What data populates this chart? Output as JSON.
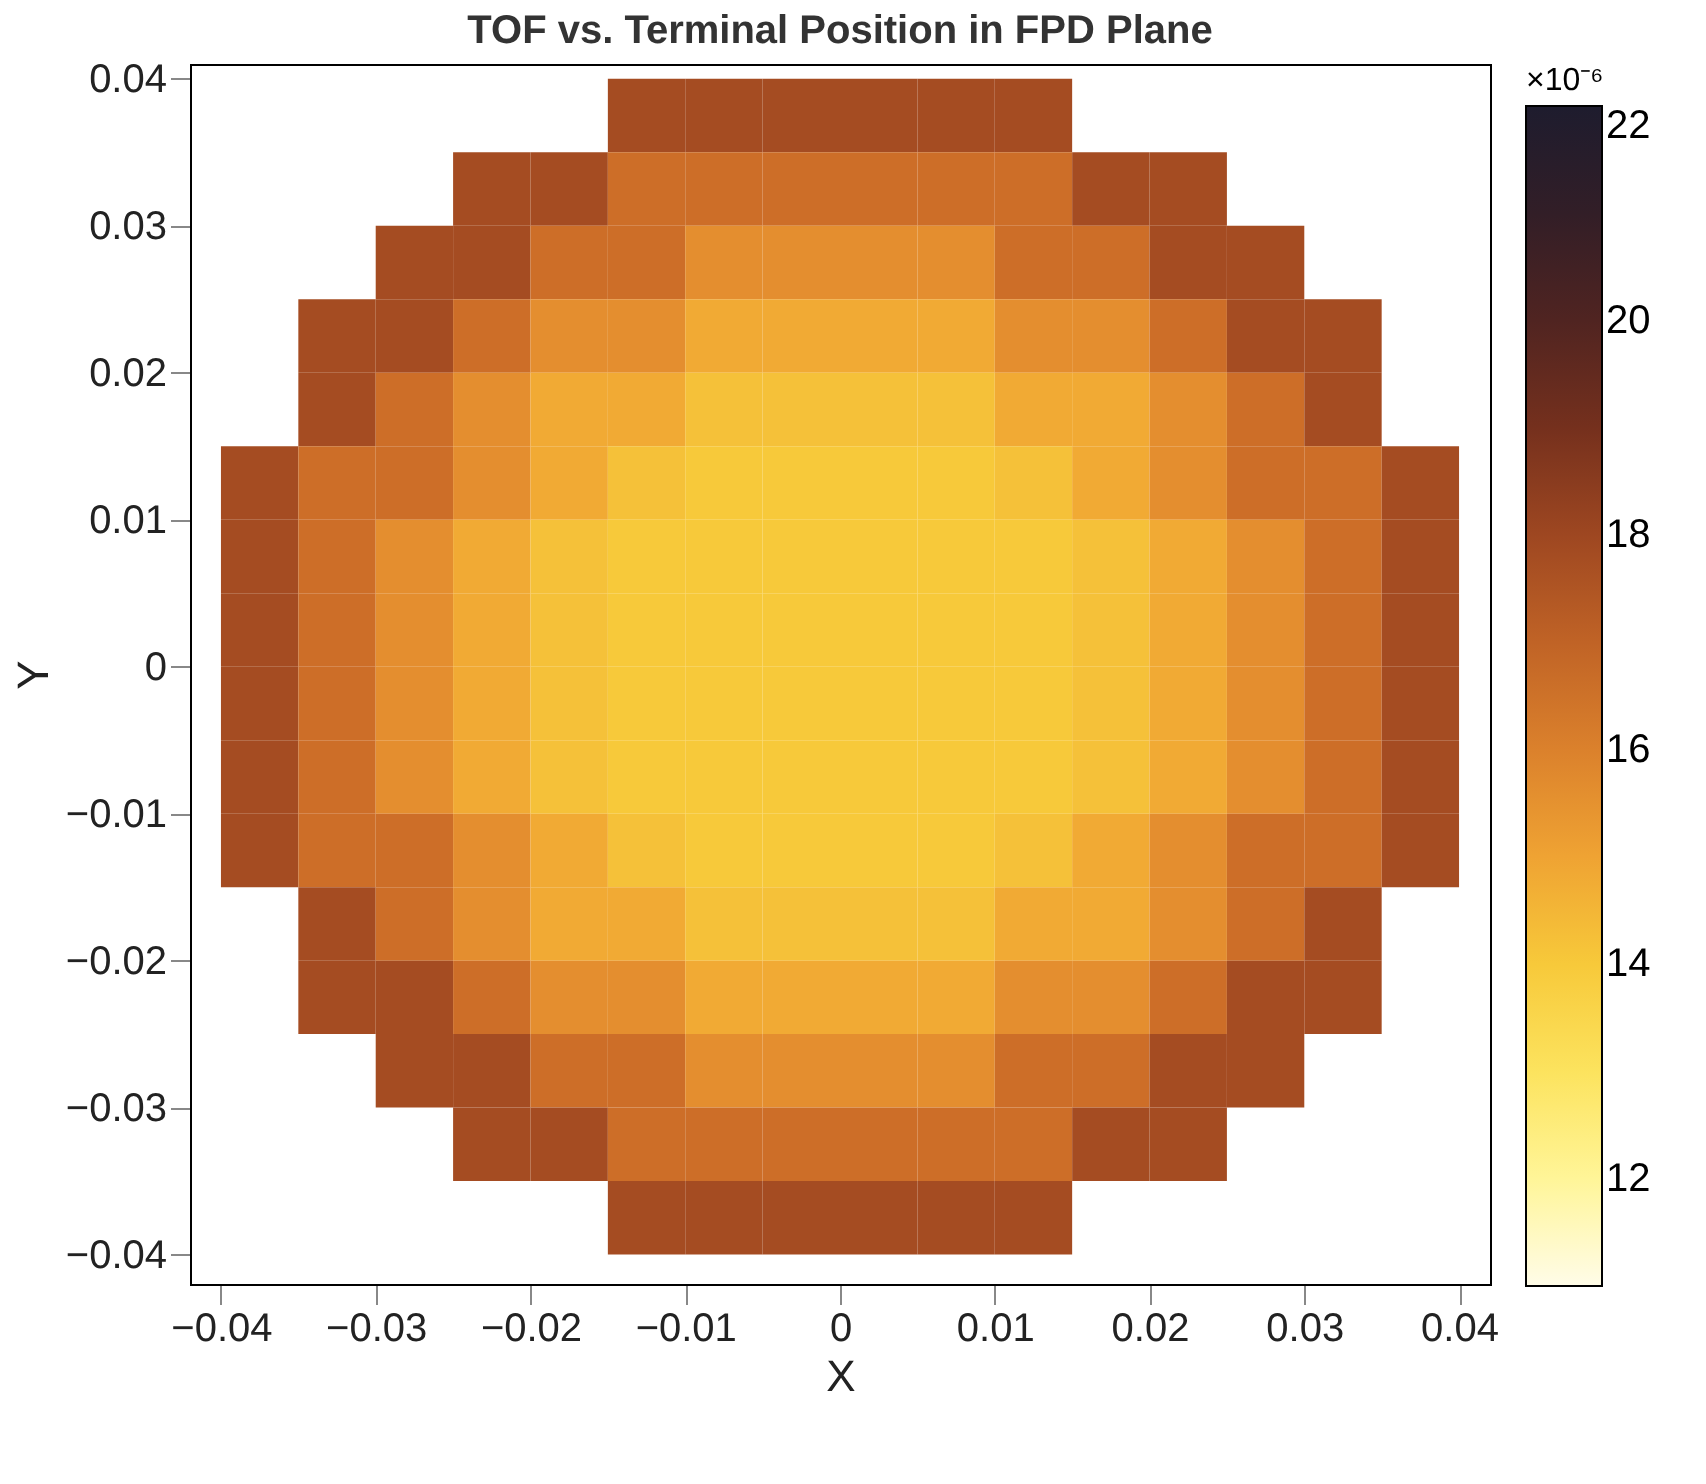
{
  "chart_data": {
    "type": "heatmap",
    "title": "TOF vs. Terminal Position in FPD Plane",
    "xlabel": "X",
    "ylabel": "Y",
    "clabel": "×10⁻⁶",
    "x": [
      -0.0375,
      -0.0325,
      -0.0275,
      -0.0225,
      -0.0175,
      -0.0125,
      -0.0075,
      -0.0025,
      0.0025,
      0.0075,
      0.0125,
      0.0175,
      0.0225,
      0.0275,
      0.0325,
      0.0375
    ],
    "cells": [
      [
        null,
        null,
        null,
        null,
        null,
        17.8,
        17.8,
        17.8,
        17.8,
        17.8,
        17.8,
        null,
        null,
        null,
        null,
        null
      ],
      [
        null,
        null,
        null,
        17.8,
        17.8,
        16.6,
        16.6,
        16.6,
        16.6,
        16.6,
        16.6,
        17.8,
        17.8,
        null,
        null,
        null
      ],
      [
        null,
        null,
        17.8,
        17.8,
        16.6,
        16.6,
        15.6,
        15.6,
        15.6,
        15.6,
        16.6,
        16.6,
        17.8,
        17.8,
        null,
        null
      ],
      [
        null,
        17.8,
        17.8,
        16.6,
        15.6,
        15.6,
        14.8,
        14.8,
        14.8,
        14.8,
        15.6,
        15.6,
        16.6,
        17.8,
        17.8,
        null
      ],
      [
        null,
        17.8,
        16.6,
        15.6,
        14.8,
        14.8,
        14.2,
        14.2,
        14.2,
        14.2,
        14.8,
        14.8,
        15.6,
        16.6,
        17.8,
        null
      ],
      [
        17.8,
        16.6,
        16.6,
        15.6,
        14.8,
        14.2,
        14.0,
        14.0,
        14.0,
        14.0,
        14.2,
        14.8,
        15.6,
        16.6,
        16.6,
        17.8
      ],
      [
        17.8,
        16.6,
        15.6,
        14.8,
        14.2,
        14.0,
        14.0,
        14.0,
        14.0,
        14.0,
        14.0,
        14.2,
        14.8,
        15.6,
        16.6,
        17.8
      ],
      [
        17.8,
        16.6,
        15.6,
        14.8,
        14.2,
        14.0,
        14.0,
        14.0,
        14.0,
        14.0,
        14.0,
        14.2,
        14.8,
        15.6,
        16.6,
        17.8
      ],
      [
        17.8,
        16.6,
        15.6,
        14.8,
        14.2,
        14.0,
        14.0,
        14.0,
        14.0,
        14.0,
        14.0,
        14.2,
        14.8,
        15.6,
        16.6,
        17.8
      ],
      [
        17.8,
        16.6,
        15.6,
        14.8,
        14.2,
        14.0,
        14.0,
        14.0,
        14.0,
        14.0,
        14.0,
        14.2,
        14.8,
        15.6,
        16.6,
        17.8
      ],
      [
        17.8,
        16.6,
        16.6,
        15.6,
        14.8,
        14.2,
        14.0,
        14.0,
        14.0,
        14.0,
        14.2,
        14.8,
        15.6,
        16.6,
        16.6,
        17.8
      ],
      [
        null,
        17.8,
        16.6,
        15.6,
        14.8,
        14.8,
        14.2,
        14.2,
        14.2,
        14.2,
        14.8,
        14.8,
        15.6,
        16.6,
        17.8,
        null
      ],
      [
        null,
        17.8,
        17.8,
        16.6,
        15.6,
        15.6,
        14.8,
        14.8,
        14.8,
        14.8,
        15.6,
        15.6,
        16.6,
        17.8,
        17.8,
        null
      ],
      [
        null,
        null,
        17.8,
        17.8,
        16.6,
        16.6,
        15.6,
        15.6,
        15.6,
        15.6,
        16.6,
        16.6,
        17.8,
        17.8,
        null,
        null
      ],
      [
        null,
        null,
        null,
        17.8,
        17.8,
        16.6,
        16.6,
        16.6,
        16.6,
        16.6,
        16.6,
        17.8,
        17.8,
        null,
        null,
        null
      ],
      [
        null,
        null,
        null,
        null,
        null,
        17.8,
        17.8,
        17.8,
        17.8,
        17.8,
        17.8,
        null,
        null,
        null,
        null,
        null
      ]
    ],
    "xlim": [
      -0.042,
      0.042
    ],
    "ylim": [
      -0.042,
      0.041
    ],
    "xticks": [
      -0.04,
      -0.03,
      -0.02,
      -0.01,
      0,
      0.01,
      0.02,
      0.03,
      0.04
    ],
    "yticks": [
      -0.04,
      -0.03,
      -0.02,
      -0.01,
      0,
      0.01,
      0.02,
      0.03,
      0.04
    ],
    "clim": [
      11,
      22
    ],
    "cticks": [
      12,
      14,
      16,
      18,
      20,
      22
    ],
    "grid": false
  }
}
